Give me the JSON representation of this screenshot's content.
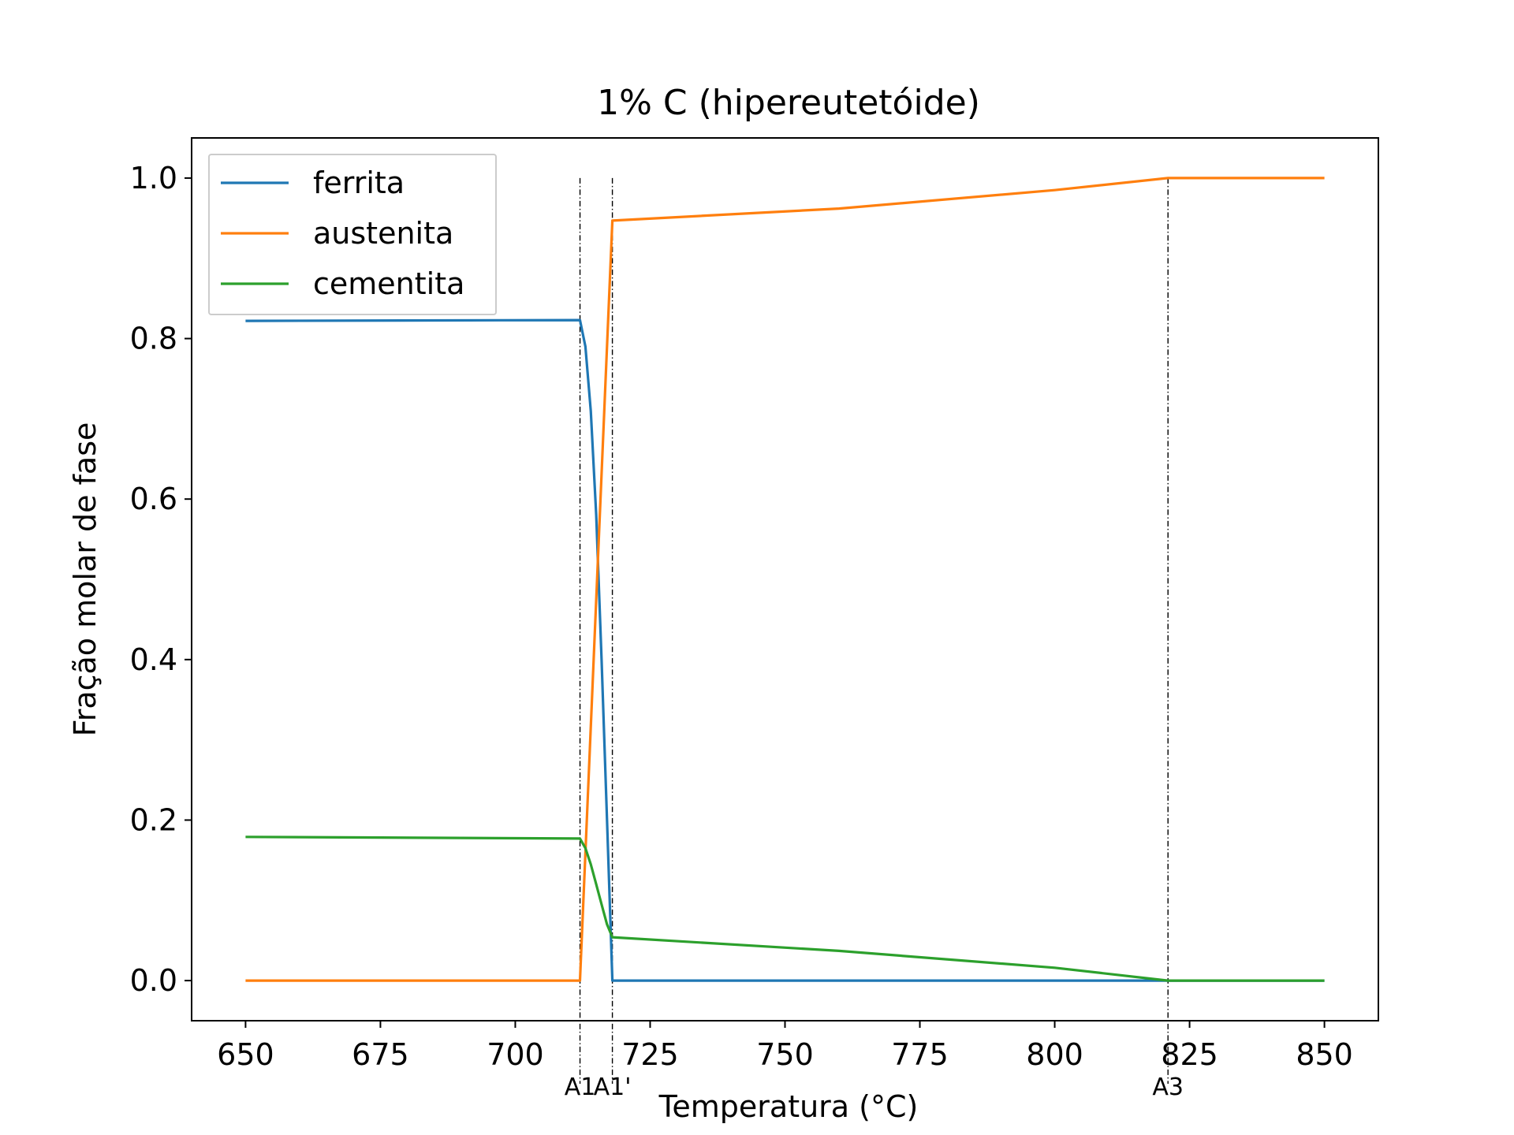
{
  "chart_data": {
    "type": "line",
    "title": "1% C (hipereutetóide)",
    "xlabel": "Temperatura (°C)",
    "ylabel": "Fração molar de fase",
    "xlim": [
      640,
      860
    ],
    "ylim": [
      -0.05,
      1.05
    ],
    "xticks": [
      650,
      675,
      700,
      725,
      750,
      775,
      800,
      825,
      850
    ],
    "yticks": [
      0.0,
      0.2,
      0.4,
      0.6,
      0.8,
      1.0
    ],
    "xtick_labels": [
      "650",
      "675",
      "700",
      "725",
      "750",
      "775",
      "800",
      "825",
      "850"
    ],
    "ytick_labels": [
      "0.0",
      "0.2",
      "0.4",
      "0.6",
      "0.8",
      "1.0"
    ],
    "grid": false,
    "legend": "upper-left",
    "series": [
      {
        "name": "ferrita",
        "color": "#1f77b4",
        "x": [
          650,
          712,
          713,
          714,
          715,
          716,
          717,
          718,
          720,
          760,
          800,
          821,
          850
        ],
        "y": [
          0.822,
          0.823,
          0.79,
          0.71,
          0.58,
          0.4,
          0.2,
          0.0,
          0.0,
          0.0,
          0.0,
          0.0,
          0.0
        ]
      },
      {
        "name": "austenita",
        "color": "#ff7f0e",
        "x": [
          650,
          712,
          718,
          760,
          800,
          821,
          850
        ],
        "y": [
          0.0,
          0.0,
          0.947,
          0.962,
          0.985,
          1.0,
          1.0
        ]
      },
      {
        "name": "cementita",
        "color": "#2ca02c",
        "x": [
          650,
          712,
          713,
          714,
          715,
          716,
          717,
          718,
          760,
          800,
          821,
          850
        ],
        "y": [
          0.179,
          0.177,
          0.165,
          0.145,
          0.12,
          0.095,
          0.07,
          0.054,
          0.037,
          0.016,
          0.0,
          0.0
        ]
      }
    ],
    "vlines": [
      {
        "x": 712,
        "label": "A1"
      },
      {
        "x": 718,
        "label": "A1'"
      },
      {
        "x": 821,
        "label": "A3"
      }
    ]
  }
}
